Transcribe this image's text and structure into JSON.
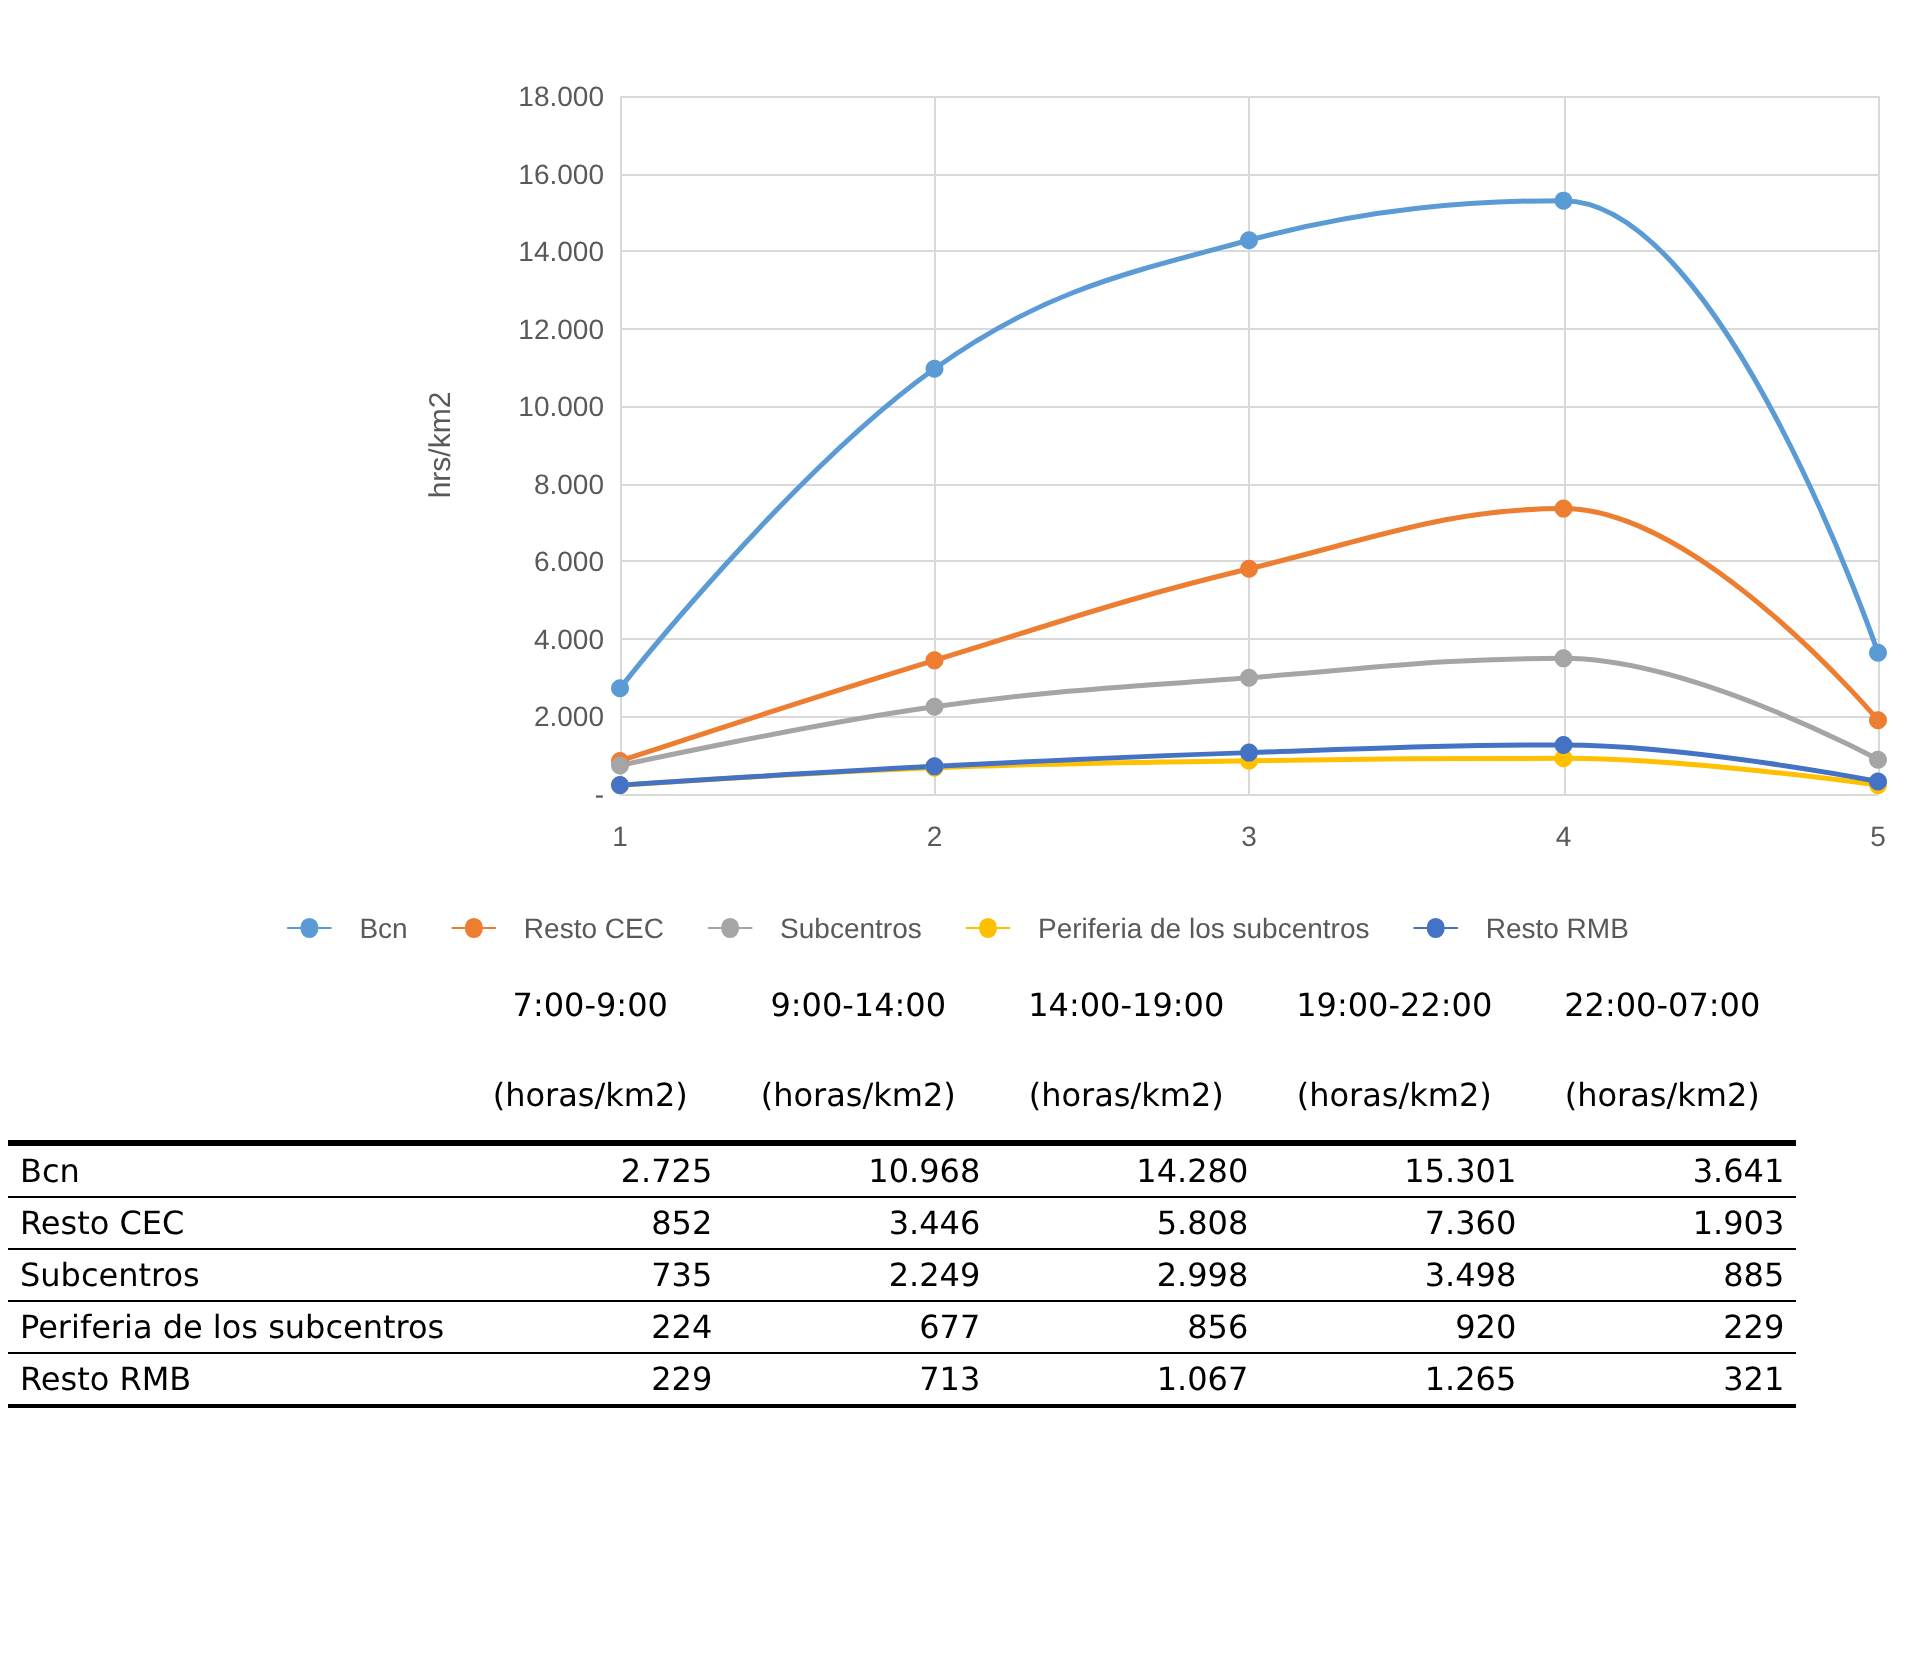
{
  "chart_data": {
    "type": "line",
    "ylabel": "hrs/km2",
    "categories": [
      "1",
      "2",
      "3",
      "4",
      "5"
    ],
    "series": [
      {
        "name": "Bcn",
        "color": "#5b9bd5",
        "values": [
          2725,
          10968,
          14280,
          15301,
          3641
        ],
        "value_labels": [
          "2.725",
          "10.968",
          "14.280",
          "15.301",
          "3.641"
        ]
      },
      {
        "name": "Resto CEC",
        "color": "#ed7d31",
        "values": [
          852,
          3446,
          5808,
          7360,
          1903
        ],
        "value_labels": [
          "852",
          "3.446",
          "5.808",
          "7.360",
          "1.903"
        ]
      },
      {
        "name": "Subcentros",
        "color": "#a5a5a5",
        "values": [
          735,
          2249,
          2998,
          3498,
          885
        ],
        "value_labels": [
          "735",
          "2.249",
          "2.998",
          "3.498",
          "885"
        ]
      },
      {
        "name": "Periferia de los subcentros",
        "color": "#ffc000",
        "values": [
          224,
          677,
          856,
          920,
          229
        ],
        "value_labels": [
          "224",
          "677",
          "856",
          "920",
          "229"
        ]
      },
      {
        "name": "Resto RMB",
        "color": "#4472c4",
        "values": [
          229,
          713,
          1067,
          1265,
          321
        ],
        "value_labels": [
          "229",
          "713",
          "1.067",
          "1.265",
          "321"
        ]
      }
    ],
    "ylim": [
      0,
      18000
    ],
    "yticks": [
      {
        "value": 0,
        "label": "-"
      },
      {
        "value": 2000,
        "label": "2.000"
      },
      {
        "value": 4000,
        "label": "4.000"
      },
      {
        "value": 6000,
        "label": "6.000"
      },
      {
        "value": 8000,
        "label": "8.000"
      },
      {
        "value": 10000,
        "label": "10.000"
      },
      {
        "value": 12000,
        "label": "12.000"
      },
      {
        "value": 14000,
        "label": "14.000"
      },
      {
        "value": 16000,
        "label": "16.000"
      },
      {
        "value": 18000,
        "label": "18.000"
      }
    ],
    "grid": true,
    "legend": "bottom",
    "marker": "circle",
    "line_style": "solid",
    "annotations": [
      "7:00-9:00",
      "9:00-14:00",
      "14:00-19:00",
      "19:00-22:00",
      "22:00-07:00",
      "(horas/km2)",
      "(horas/km2)",
      "(horas/km2)",
      "(horas/km2)",
      "(horas/km2)"
    ]
  }
}
